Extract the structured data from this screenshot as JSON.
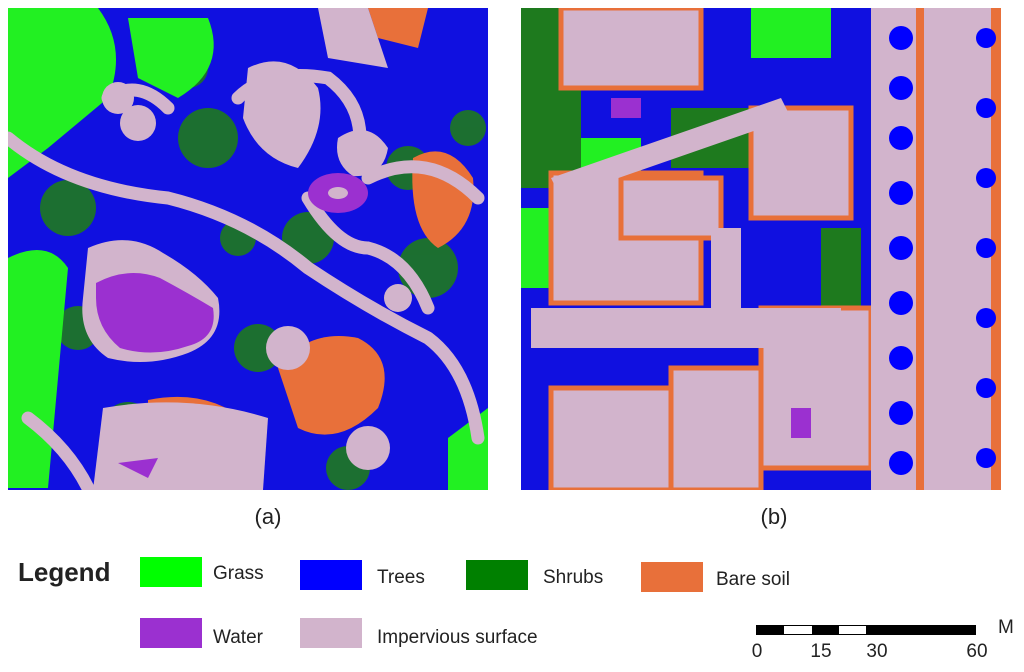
{
  "panels": [
    {
      "id": "a",
      "caption": "(a)"
    },
    {
      "id": "b",
      "caption": "(b)"
    }
  ],
  "legend": {
    "title": "Legend",
    "items": [
      {
        "label": "Grass",
        "color": "#00ff00"
      },
      {
        "label": "Trees",
        "color": "#0000ff"
      },
      {
        "label": "Shrubs",
        "color": "#008000"
      },
      {
        "label": "Bare soil",
        "color": "#e8703a"
      },
      {
        "label": "Water",
        "color": "#9b30d0"
      },
      {
        "label": "Impervious surface",
        "color": "#d2b4cc"
      }
    ]
  },
  "scale_bar": {
    "unit": "M",
    "ticks": [
      "0",
      "15",
      "30",
      "60"
    ]
  }
}
